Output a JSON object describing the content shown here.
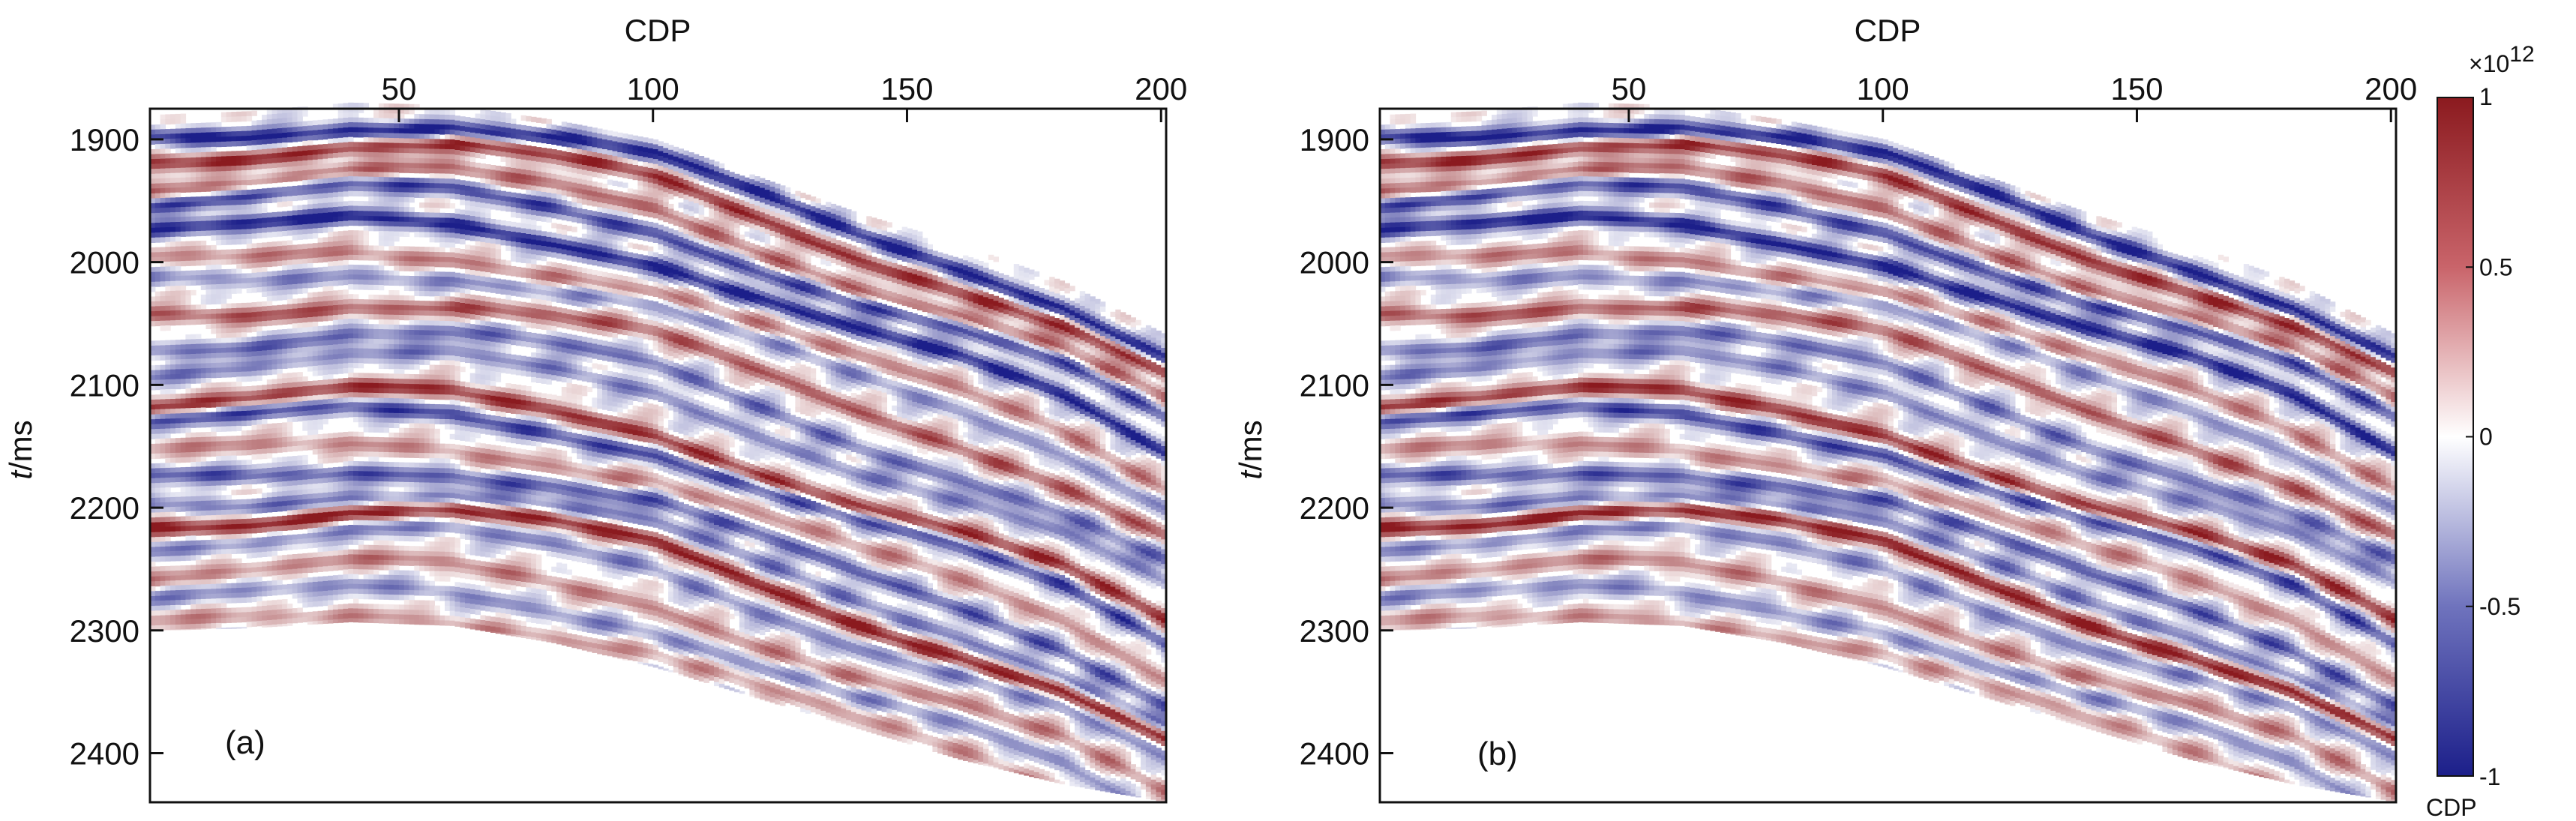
{
  "chart_data": [
    {
      "type": "heatmap",
      "panel_label": "(a)",
      "xlabel": "CDP",
      "ylabel_italic": "t",
      "ylabel_unit": "/ms",
      "x_ticks": [
        50,
        100,
        150,
        200
      ],
      "y_ticks": [
        1900,
        2000,
        2100,
        2200,
        2300,
        2400
      ],
      "xlim": [
        1,
        201
      ],
      "ylim": [
        1875,
        2440
      ],
      "x_axis_position": "top",
      "y_axis_reversed": true,
      "top_boundary_ms": [
        {
          "cdp": 1,
          "t": 1880
        },
        {
          "cdp": 20,
          "t": 1877
        },
        {
          "cdp": 40,
          "t": 1870
        },
        {
          "cdp": 60,
          "t": 1872
        },
        {
          "cdp": 80,
          "t": 1884
        },
        {
          "cdp": 100,
          "t": 1900
        },
        {
          "cdp": 120,
          "t": 1930
        },
        {
          "cdp": 140,
          "t": 1960
        },
        {
          "cdp": 160,
          "t": 1985
        },
        {
          "cdp": 180,
          "t": 2015
        },
        {
          "cdp": 201,
          "t": 2060
        }
      ],
      "bottom_boundary_ms": [
        {
          "cdp": 1,
          "t": 2300
        },
        {
          "cdp": 20,
          "t": 2298
        },
        {
          "cdp": 40,
          "t": 2293
        },
        {
          "cdp": 60,
          "t": 2296
        },
        {
          "cdp": 80,
          "t": 2310
        },
        {
          "cdp": 100,
          "t": 2330
        },
        {
          "cdp": 120,
          "t": 2355
        },
        {
          "cdp": 140,
          "t": 2380
        },
        {
          "cdp": 160,
          "t": 2405
        },
        {
          "cdp": 180,
          "t": 2425
        },
        {
          "cdp": 201,
          "t": 2440
        }
      ],
      "reflectors": [
        {
          "t0": 1895,
          "amp": -1.0
        },
        {
          "t0": 1912,
          "amp": 0.9
        },
        {
          "t0": 1935,
          "amp": 0.6
        },
        {
          "t0": 1950,
          "amp": -0.8
        },
        {
          "t0": 1975,
          "amp": -1.0
        },
        {
          "t0": 2000,
          "amp": 0.5
        },
        {
          "t0": 2015,
          "amp": -0.45
        },
        {
          "t0": 2040,
          "amp": 0.7
        },
        {
          "t0": 2065,
          "amp": -0.6
        },
        {
          "t0": 2085,
          "amp": -0.5
        },
        {
          "t0": 2115,
          "amp": 0.9
        },
        {
          "t0": 2130,
          "amp": -0.8
        },
        {
          "t0": 2155,
          "amp": 0.45
        },
        {
          "t0": 2175,
          "amp": -0.7
        },
        {
          "t0": 2195,
          "amp": -0.55
        },
        {
          "t0": 2210,
          "amp": 1.0
        },
        {
          "t0": 2228,
          "amp": -0.5
        },
        {
          "t0": 2255,
          "amp": 0.5
        },
        {
          "t0": 2275,
          "amp": -0.45
        },
        {
          "t0": 2295,
          "amp": 0.4
        },
        {
          "t0": 2320,
          "amp": -0.35
        },
        {
          "t0": 2345,
          "amp": 0.35
        },
        {
          "t0": 2370,
          "amp": -0.3
        }
      ]
    },
    {
      "type": "heatmap",
      "panel_label": "(b)",
      "xlabel": "CDP",
      "ylabel_italic": "t",
      "ylabel_unit": "/ms",
      "x_ticks": [
        50,
        100,
        150,
        200
      ],
      "y_ticks": [
        1900,
        2000,
        2100,
        2200,
        2300,
        2400
      ],
      "xlim": [
        1,
        201
      ],
      "ylim": [
        1875,
        2440
      ],
      "x_axis_position": "top",
      "y_axis_reversed": true,
      "top_boundary_ms": [
        {
          "cdp": 1,
          "t": 1880
        },
        {
          "cdp": 20,
          "t": 1877
        },
        {
          "cdp": 40,
          "t": 1870
        },
        {
          "cdp": 60,
          "t": 1872
        },
        {
          "cdp": 80,
          "t": 1884
        },
        {
          "cdp": 100,
          "t": 1900
        },
        {
          "cdp": 120,
          "t": 1930
        },
        {
          "cdp": 140,
          "t": 1960
        },
        {
          "cdp": 160,
          "t": 1985
        },
        {
          "cdp": 180,
          "t": 2015
        },
        {
          "cdp": 201,
          "t": 2060
        }
      ],
      "bottom_boundary_ms": [
        {
          "cdp": 1,
          "t": 2300
        },
        {
          "cdp": 20,
          "t": 2298
        },
        {
          "cdp": 40,
          "t": 2293
        },
        {
          "cdp": 60,
          "t": 2296
        },
        {
          "cdp": 80,
          "t": 2310
        },
        {
          "cdp": 100,
          "t": 2330
        },
        {
          "cdp": 120,
          "t": 2355
        },
        {
          "cdp": 140,
          "t": 2380
        },
        {
          "cdp": 160,
          "t": 2405
        },
        {
          "cdp": 180,
          "t": 2425
        },
        {
          "cdp": 201,
          "t": 2440
        }
      ],
      "reflectors": [
        {
          "t0": 1895,
          "amp": -1.0
        },
        {
          "t0": 1912,
          "amp": 0.9
        },
        {
          "t0": 1935,
          "amp": 0.6
        },
        {
          "t0": 1950,
          "amp": -0.8
        },
        {
          "t0": 1975,
          "amp": -1.0
        },
        {
          "t0": 2000,
          "amp": 0.5
        },
        {
          "t0": 2015,
          "amp": -0.45
        },
        {
          "t0": 2040,
          "amp": 0.7
        },
        {
          "t0": 2065,
          "amp": -0.6
        },
        {
          "t0": 2085,
          "amp": -0.5
        },
        {
          "t0": 2115,
          "amp": 0.9
        },
        {
          "t0": 2130,
          "amp": -0.8
        },
        {
          "t0": 2155,
          "amp": 0.45
        },
        {
          "t0": 2175,
          "amp": -0.7
        },
        {
          "t0": 2195,
          "amp": -0.55
        },
        {
          "t0": 2210,
          "amp": 1.0
        },
        {
          "t0": 2228,
          "amp": -0.5
        },
        {
          "t0": 2255,
          "amp": 0.5
        },
        {
          "t0": 2275,
          "amp": -0.45
        },
        {
          "t0": 2295,
          "amp": 0.4
        },
        {
          "t0": 2320,
          "amp": -0.35
        },
        {
          "t0": 2345,
          "amp": 0.35
        },
        {
          "t0": 2370,
          "amp": -0.3
        }
      ]
    }
  ],
  "colorbar": {
    "multiplier_base": "×10",
    "multiplier_exponent": "12",
    "ticks": [
      {
        "value": 1,
        "label": "1"
      },
      {
        "value": 0.5,
        "label": "0.5"
      },
      {
        "value": 0,
        "label": "0"
      },
      {
        "value": -0.5,
        "label": "-0.5"
      },
      {
        "value": -1,
        "label": "-1"
      }
    ],
    "range": [
      -1,
      1
    ],
    "colors": {
      "positive": "#8b1a1f",
      "zero": "#ffffff",
      "negative": "#1c1f8a"
    },
    "bottom_label": "CDP"
  }
}
